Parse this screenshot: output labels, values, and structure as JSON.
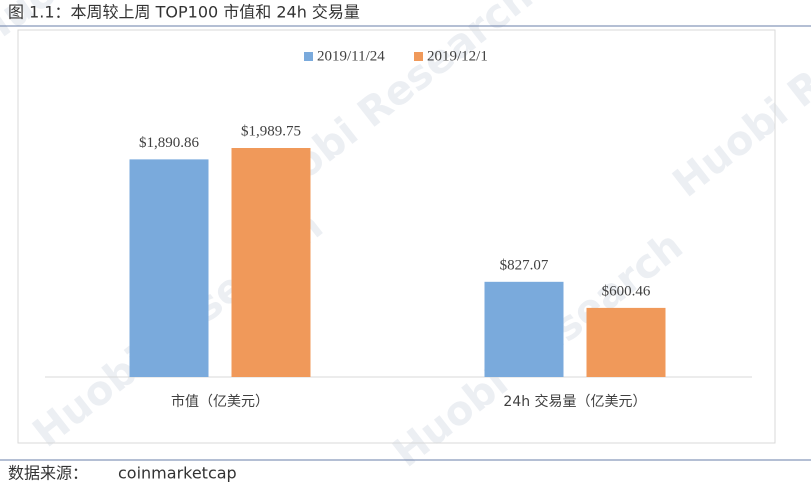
{
  "chart_data": {
    "type": "bar",
    "title": "图 1.1：本周较上周 TOP100 市值和 24h 交易量",
    "categories": [
      "市值（亿美元）",
      "24h 交易量（亿美元）"
    ],
    "series": [
      {
        "name": "2019/11/24",
        "color": "#7aaadc",
        "values": [
          1890.86,
          827.07
        ],
        "value_labels": [
          "$1,890.86",
          "$827.07"
        ]
      },
      {
        "name": "2019/12/1",
        "color": "#f0995a",
        "values": [
          1989.75,
          600.46
        ],
        "value_labels": [
          "$1,989.75",
          "$600.46"
        ]
      }
    ],
    "legend": "top",
    "source_label": "数据来源：",
    "source": "coinmarketcap",
    "watermark": "Huobi Research"
  }
}
